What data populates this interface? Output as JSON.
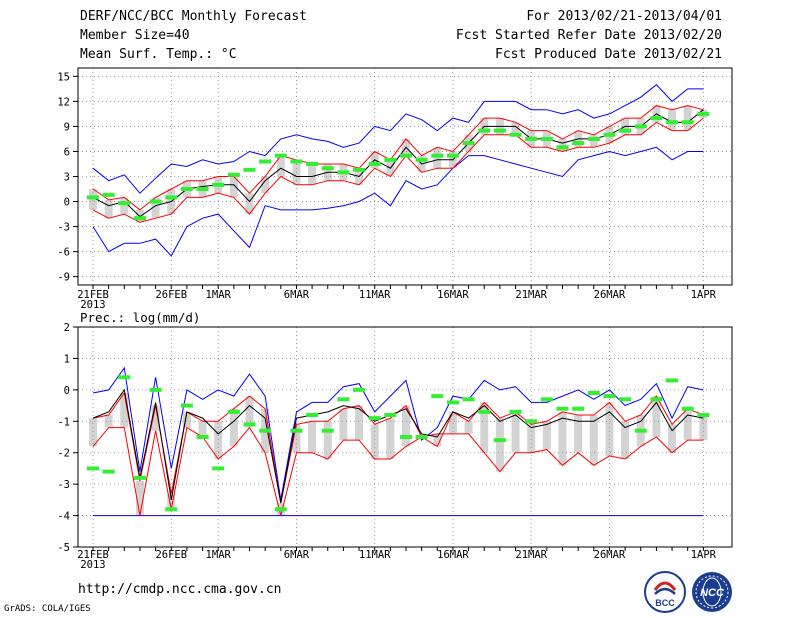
{
  "header": {
    "title": "DERF/NCC/BCC Monthly Forecast",
    "member_size": "Member Size=40",
    "variable": "Mean Surf. Temp.: °C",
    "period": "For 2013/02/21-2013/04/01",
    "start_date": "Fcst Started Refer Date 2013/02/20",
    "produced_date": "Fcst Produced Date 2013/02/21"
  },
  "footer": {
    "url": "http://cmdp.ncc.cma.gov.cn",
    "grads": "GrADS: COLA/IGES"
  },
  "logos": {
    "left": "BCC",
    "right": "NCC"
  },
  "colors": {
    "box": "#d3d3d3",
    "mean": "#000000",
    "spread": "#ff0000",
    "extreme": "#0000ff",
    "obs": "#33ee33",
    "grid": "#888888"
  },
  "chart_data": [
    {
      "type": "line",
      "title": "Mean Surf. Temp.: °C",
      "ylim": [
        -10,
        16
      ],
      "yticks": [
        -9,
        -6,
        -3,
        0,
        3,
        6,
        9,
        12,
        15
      ],
      "xticks": [
        {
          "day": 0,
          "label": "21FEB",
          "sub": "2013"
        },
        {
          "day": 5,
          "label": "26FEB"
        },
        {
          "day": 8,
          "label": "1MAR"
        },
        {
          "day": 13,
          "label": "6MAR"
        },
        {
          "day": 18,
          "label": "11MAR"
        },
        {
          "day": 23,
          "label": "16MAR"
        },
        {
          "day": 28,
          "label": "21MAR"
        },
        {
          "day": 33,
          "label": "26MAR"
        },
        {
          "day": 39,
          "label": "1APR"
        }
      ],
      "days": 40,
      "series": [
        {
          "name": "max",
          "values": [
            4.0,
            2.5,
            3.2,
            1.0,
            2.8,
            4.5,
            4.2,
            5.0,
            4.5,
            4.8,
            6.0,
            5.5,
            7.5,
            8.0,
            7.5,
            7.2,
            6.5,
            7.0,
            9.0,
            8.5,
            10.5,
            9.8,
            8.5,
            10.0,
            9.5,
            12.0,
            12.0,
            12.0,
            11.0,
            11.0,
            10.5,
            11.0,
            10.0,
            10.5,
            11.5,
            12.5,
            14.0,
            12.0,
            13.5,
            13.5
          ]
        },
        {
          "name": "upper",
          "values": [
            1.5,
            0.2,
            0.5,
            -1.0,
            0.5,
            1.5,
            2.5,
            2.5,
            3.0,
            3.0,
            1.0,
            3.0,
            5.5,
            5.0,
            4.5,
            4.5,
            4.5,
            4.0,
            6.0,
            5.0,
            7.5,
            5.5,
            6.5,
            6.0,
            8.0,
            10.0,
            10.0,
            9.5,
            8.5,
            8.5,
            7.5,
            8.5,
            8.0,
            9.0,
            10.0,
            10.0,
            11.5,
            11.0,
            11.5,
            11.0
          ]
        },
        {
          "name": "mean",
          "values": [
            0.5,
            -0.5,
            0.0,
            -1.8,
            -0.5,
            0.0,
            1.5,
            1.8,
            2.0,
            2.0,
            0.0,
            2.5,
            4.0,
            3.0,
            3.0,
            3.5,
            3.5,
            3.0,
            5.0,
            4.0,
            6.5,
            4.5,
            5.0,
            5.0,
            7.0,
            9.0,
            9.0,
            9.0,
            7.5,
            7.5,
            7.0,
            7.5,
            7.5,
            8.0,
            9.0,
            9.0,
            10.5,
            9.5,
            9.5,
            11.0
          ]
        },
        {
          "name": "lower",
          "values": [
            -1.0,
            -2.0,
            -1.5,
            -2.5,
            -2.0,
            -1.5,
            0.5,
            0.5,
            1.0,
            0.5,
            -1.5,
            1.0,
            3.0,
            2.0,
            2.0,
            2.5,
            2.5,
            2.0,
            4.0,
            3.0,
            5.5,
            3.5,
            4.0,
            4.0,
            6.0,
            8.0,
            8.0,
            8.0,
            6.5,
            6.5,
            6.0,
            6.5,
            6.5,
            7.0,
            8.0,
            8.0,
            9.5,
            8.5,
            8.5,
            10.0
          ]
        },
        {
          "name": "min",
          "values": [
            -3.0,
            -6.0,
            -5.0,
            -5.0,
            -4.5,
            -6.5,
            -3.0,
            -2.0,
            -1.5,
            -3.5,
            -5.5,
            -0.5,
            -1.0,
            -1.0,
            -1.0,
            -0.8,
            -0.5,
            0.0,
            1.0,
            -0.5,
            2.5,
            1.5,
            2.0,
            4.0,
            5.5,
            5.5,
            5.0,
            4.5,
            4.0,
            3.5,
            3.0,
            5.0,
            5.5,
            6.0,
            5.5,
            6.0,
            6.5,
            5.0,
            6.0,
            6.0
          ]
        },
        {
          "name": "observed",
          "values": [
            0.5,
            0.8,
            -0.2,
            -2.0,
            0.0,
            0.5,
            1.5,
            1.5,
            2.0,
            3.2,
            3.8,
            4.8,
            5.5,
            4.8,
            4.5,
            4.0,
            3.5,
            3.8,
            4.5,
            5.0,
            5.5,
            5.0,
            5.5,
            5.5,
            7.0,
            8.5,
            8.5,
            8.0,
            7.5,
            7.5,
            6.5,
            7.0,
            7.5,
            8.0,
            8.5,
            9.0,
            10.0,
            9.5,
            9.5,
            10.5
          ]
        }
      ]
    },
    {
      "type": "line",
      "title": "Prec.: log(mm/d)",
      "ylim": [
        -5,
        2
      ],
      "yticks": [
        -5,
        -4,
        -3,
        -2,
        -1,
        0,
        1,
        2
      ],
      "xticks": [
        {
          "day": 0,
          "label": "21FEB",
          "sub": "2013"
        },
        {
          "day": 5,
          "label": "26FEB"
        },
        {
          "day": 8,
          "label": "1MAR"
        },
        {
          "day": 13,
          "label": "6MAR"
        },
        {
          "day": 18,
          "label": "11MAR"
        },
        {
          "day": 23,
          "label": "16MAR"
        },
        {
          "day": 28,
          "label": "21MAR"
        },
        {
          "day": 33,
          "label": "26MAR"
        },
        {
          "day": 39,
          "label": "1APR"
        }
      ],
      "days": 40,
      "series": [
        {
          "name": "max",
          "values": [
            -0.1,
            0.0,
            0.7,
            -2.6,
            0.4,
            -2.5,
            0.0,
            -0.3,
            0.0,
            -0.2,
            0.5,
            -0.2,
            -3.5,
            -0.7,
            -0.4,
            -0.4,
            0.1,
            0.2,
            -0.7,
            -0.2,
            0.3,
            -1.6,
            -1.2,
            -0.2,
            -0.3,
            0.3,
            0.0,
            0.1,
            -0.4,
            -0.4,
            -0.2,
            0.0,
            -0.3,
            0.0,
            -0.5,
            -0.3,
            0.2,
            -0.9,
            0.1,
            0.0
          ]
        },
        {
          "name": "upper",
          "values": [
            -0.9,
            -0.8,
            -0.1,
            -2.9,
            -0.5,
            -3.3,
            -0.7,
            -1.0,
            -1.0,
            -0.6,
            -0.2,
            -0.6,
            -3.6,
            -1.1,
            -1.0,
            -1.0,
            -0.6,
            -0.5,
            -1.1,
            -0.9,
            -0.5,
            -1.5,
            -1.8,
            -0.7,
            -1.0,
            -0.4,
            -0.9,
            -0.7,
            -1.1,
            -1.0,
            -0.7,
            -0.8,
            -0.8,
            -0.4,
            -1.0,
            -0.8,
            -0.2,
            -1.1,
            -0.6,
            -0.8
          ]
        },
        {
          "name": "mean",
          "values": [
            -0.9,
            -0.7,
            0.0,
            -2.8,
            -0.4,
            -3.5,
            -0.7,
            -0.9,
            -1.4,
            -1.0,
            -0.5,
            -0.9,
            -3.6,
            -0.9,
            -0.8,
            -0.7,
            -0.5,
            -0.6,
            -1.0,
            -0.8,
            -0.6,
            -1.4,
            -1.5,
            -0.7,
            -0.9,
            -0.5,
            -1.0,
            -0.8,
            -1.2,
            -1.1,
            -0.9,
            -1.0,
            -1.0,
            -0.7,
            -1.2,
            -1.0,
            -0.4,
            -1.3,
            -0.8,
            -0.9
          ]
        },
        {
          "name": "lower",
          "values": [
            -1.8,
            -1.2,
            -1.2,
            -4.0,
            -1.3,
            -3.8,
            -1.2,
            -1.5,
            -2.2,
            -1.8,
            -1.2,
            -2.0,
            -4.0,
            -2.0,
            -2.0,
            -2.2,
            -1.6,
            -1.6,
            -2.2,
            -2.2,
            -1.8,
            -1.5,
            -1.4,
            -1.4,
            -1.4,
            -2.0,
            -2.6,
            -2.0,
            -2.0,
            -1.9,
            -2.4,
            -2.0,
            -2.4,
            -2.1,
            -2.2,
            -1.8,
            -1.5,
            -2.0,
            -1.6,
            -1.6
          ]
        },
        {
          "name": "min",
          "values": [
            -4,
            -4,
            -4,
            -4,
            -4,
            -4,
            -4,
            -4,
            -4,
            -4,
            -4,
            -4,
            -4,
            -4,
            -4,
            -4,
            -4,
            -4,
            -4,
            -4,
            -4,
            -4,
            -4,
            -4,
            -4,
            -4,
            -4,
            -4,
            -4,
            -4,
            -4,
            -4,
            -4,
            -4,
            -4,
            -4,
            -4,
            -4,
            -4,
            -4
          ]
        },
        {
          "name": "observed",
          "values": [
            -2.5,
            -2.6,
            0.4,
            -2.8,
            0.0,
            -3.8,
            -0.5,
            -1.5,
            -2.5,
            -0.7,
            -1.1,
            -1.3,
            -3.8,
            -1.3,
            -0.8,
            -1.3,
            -0.3,
            0.0,
            -0.9,
            -0.8,
            -1.5,
            -1.5,
            -0.2,
            -0.4,
            -0.3,
            -0.7,
            -1.6,
            -0.7,
            -1.0,
            -0.3,
            -0.6,
            -0.6,
            -0.1,
            -0.2,
            -0.3,
            -1.3,
            -0.3,
            0.3,
            -0.6,
            -0.8
          ]
        }
      ]
    }
  ]
}
